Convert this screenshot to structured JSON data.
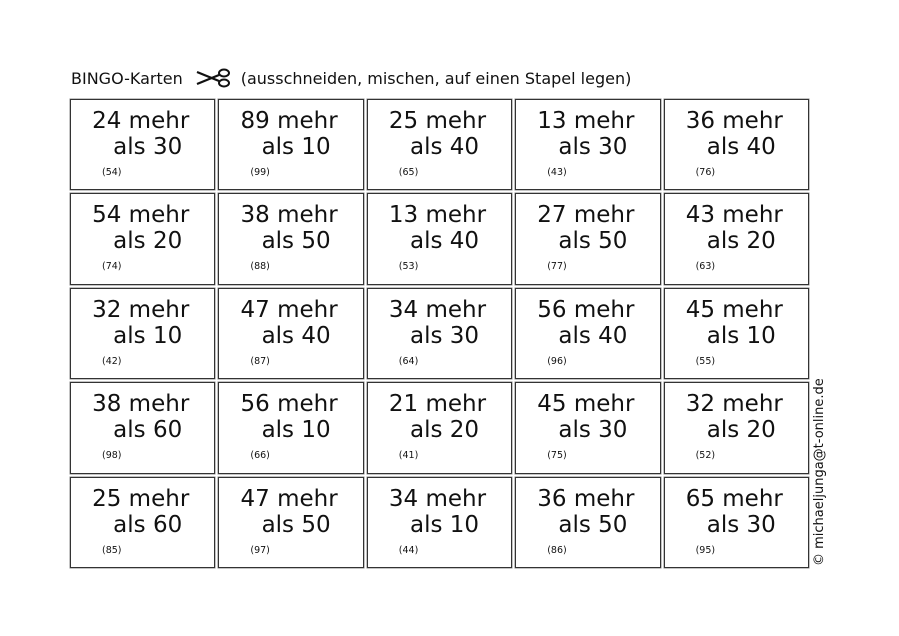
{
  "header": {
    "title": "BINGO-Karten",
    "instructions": "(ausschneiden, mischen, auf einen Stapel legen)",
    "icon": "scissors-icon"
  },
  "cards": [
    {
      "line1": "24 mehr",
      "line2": "als 30",
      "result": "(54)"
    },
    {
      "line1": "89 mehr",
      "line2": "als 10",
      "result": "(99)"
    },
    {
      "line1": "25 mehr",
      "line2": "als 40",
      "result": "(65)"
    },
    {
      "line1": "13 mehr",
      "line2": "als 30",
      "result": "(43)"
    },
    {
      "line1": "36 mehr",
      "line2": "als 40",
      "result": "(76)"
    },
    {
      "line1": "54 mehr",
      "line2": "als 20",
      "result": "(74)"
    },
    {
      "line1": "38 mehr",
      "line2": "als 50",
      "result": "(88)"
    },
    {
      "line1": "13 mehr",
      "line2": "als 40",
      "result": "(53)"
    },
    {
      "line1": "27 mehr",
      "line2": "als 50",
      "result": "(77)"
    },
    {
      "line1": "43 mehr",
      "line2": "als 20",
      "result": "(63)"
    },
    {
      "line1": "32 mehr",
      "line2": "als 10",
      "result": "(42)"
    },
    {
      "line1": "47 mehr",
      "line2": "als 40",
      "result": "(87)"
    },
    {
      "line1": "34 mehr",
      "line2": "als 30",
      "result": "(64)"
    },
    {
      "line1": "56 mehr",
      "line2": "als 40",
      "result": "(96)"
    },
    {
      "line1": "45 mehr",
      "line2": "als 10",
      "result": "(55)"
    },
    {
      "line1": "38 mehr",
      "line2": "als 60",
      "result": "(98)"
    },
    {
      "line1": "56 mehr",
      "line2": "als 10",
      "result": "(66)"
    },
    {
      "line1": "21 mehr",
      "line2": "als 20",
      "result": "(41)"
    },
    {
      "line1": "45 mehr",
      "line2": "als 30",
      "result": "(75)"
    },
    {
      "line1": "32 mehr",
      "line2": "als 20",
      "result": "(52)"
    },
    {
      "line1": "25 mehr",
      "line2": "als 60",
      "result": "(85)"
    },
    {
      "line1": "47 mehr",
      "line2": "als 50",
      "result": "(97)"
    },
    {
      "line1": "34 mehr",
      "line2": "als 10",
      "result": "(44)"
    },
    {
      "line1": "36 mehr",
      "line2": "als 50",
      "result": "(86)"
    },
    {
      "line1": "65 mehr",
      "line2": "als 30",
      "result": "(95)"
    }
  ],
  "copyright": "© michaeljunga@t-online.de"
}
